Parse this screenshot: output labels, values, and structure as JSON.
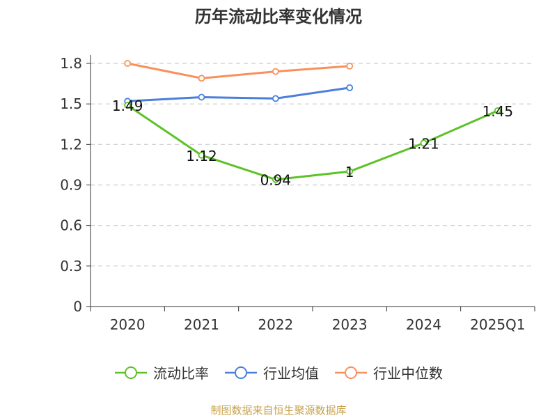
{
  "chart_data": {
    "type": "line",
    "title": "历年流动比率变化情况",
    "categories": [
      "2020",
      "2021",
      "2022",
      "2023",
      "2024",
      "2025Q1"
    ],
    "ylim": [
      0,
      1.8
    ],
    "yticks": [
      "0",
      "0.3",
      "0.6",
      "0.9",
      "1.2",
      "1.5",
      "1.8"
    ],
    "grid": true,
    "legend_position": "bottom",
    "series": [
      {
        "name": "流动比率",
        "color": "#5cc227",
        "values": [
          1.49,
          1.12,
          0.94,
          1.0,
          1.21,
          1.45
        ],
        "labels": [
          "1.49",
          "1.12",
          "0.94",
          "1",
          "1.21",
          "1.45"
        ]
      },
      {
        "name": "行业均值",
        "color": "#4a7fdc",
        "values": [
          1.52,
          1.55,
          1.54,
          1.62,
          null,
          null
        ]
      },
      {
        "name": "行业中位数",
        "color": "#f8905c",
        "values": [
          1.8,
          1.69,
          1.74,
          1.78,
          null,
          null
        ]
      }
    ]
  },
  "source": "制图数据来自恒生聚源数据库"
}
